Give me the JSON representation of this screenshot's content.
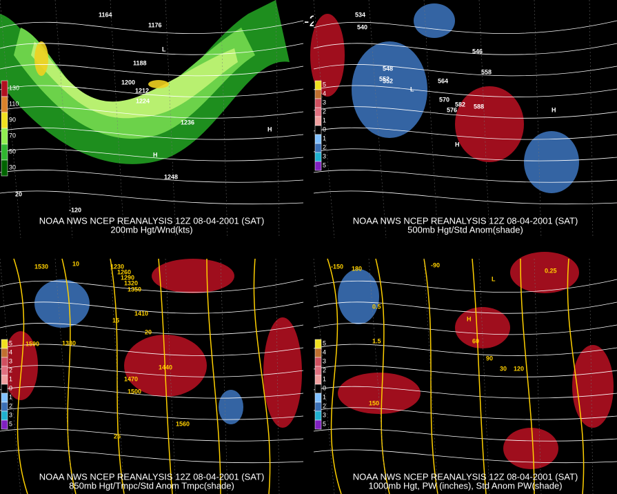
{
  "title": "12Z 08-04-2001 (SAT)",
  "panels": [
    {
      "source": "NOAA NWS NCEP REANALYSIS 12Z 08-04-2001 (SAT)",
      "caption": "200mb Hgt/Wnd(kts)",
      "legend": [
        "130",
        "110",
        "90",
        "70",
        "50",
        "30"
      ],
      "labels": [
        "1164",
        "1176",
        "1188",
        "1200",
        "1212",
        "1224",
        "1236",
        "1248",
        "H",
        "L",
        "H",
        "20",
        "-120"
      ]
    },
    {
      "source": "NOAA NWS NCEP REANALYSIS 12Z 08-04-2001 (SAT)",
      "caption": "500mb Hgt/Std Anom(shade)",
      "legend": [
        "5",
        "4",
        "3",
        "2",
        "1",
        "0",
        "1",
        "2",
        "3",
        "5"
      ],
      "labels": [
        "534",
        "540",
        "552",
        "546",
        "558",
        "564",
        "570",
        "576",
        "582",
        "588",
        "548",
        "552",
        "H",
        "L",
        "H"
      ]
    },
    {
      "source": "NOAA NWS NCEP REANALYSIS 12Z 08-04-2001 (SAT)",
      "caption": "850mb Hgt/Tmpc/Std Anom Tmpc(shade)",
      "legend": [
        "5",
        "4",
        "3",
        "2",
        "1",
        "0",
        "1",
        "2",
        "3",
        "5"
      ],
      "labels": [
        "1530",
        "1230",
        "1260",
        "1290",
        "1320",
        "1350",
        "1410",
        "1440",
        "1470",
        "1500",
        "1560",
        "1590",
        "1380",
        "10",
        "15",
        "20",
        "25"
      ]
    },
    {
      "source": "NOAA NWS NCEP REANALYSIS 12Z 08-04-2001 (SAT)",
      "caption": "1000mb Hgt, PW (inches), Std Anom PW(shade)",
      "legend": [
        "5",
        "4",
        "3",
        "2",
        "1",
        "0",
        "1",
        "2",
        "3",
        "5"
      ],
      "labels": [
        "-90",
        "-150",
        "180",
        "0.5",
        "1.5",
        "0.25",
        "30",
        "60",
        "90",
        "120",
        "150",
        "H",
        "L"
      ]
    }
  ]
}
